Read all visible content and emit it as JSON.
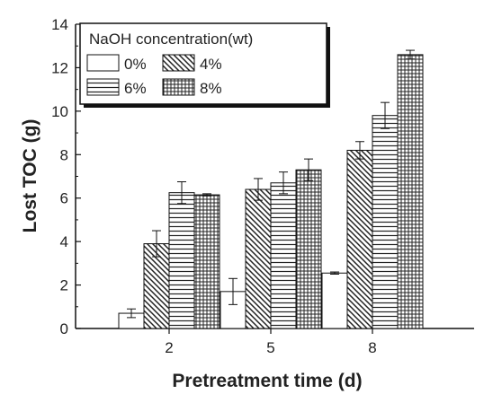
{
  "chart_data": {
    "type": "bar",
    "title": "",
    "xlabel": "Pretreatment time (d)",
    "ylabel": "Lost TOC (g)",
    "categories": [
      "2",
      "5",
      "8"
    ],
    "ylim": [
      0,
      14
    ],
    "yticks": [
      0,
      2,
      4,
      6,
      8,
      10,
      12,
      14
    ],
    "grid": false,
    "legend": {
      "title": "NaOH concentration(wt)",
      "placement": "top-left",
      "columns": 2
    },
    "series": [
      {
        "name": "0%",
        "pattern": "none",
        "values": [
          0.7,
          1.7,
          2.55
        ],
        "errors": [
          0.2,
          0.6,
          0.05
        ]
      },
      {
        "name": "4%",
        "pattern": "diagonal-hatch",
        "values": [
          3.9,
          6.4,
          8.2
        ],
        "errors": [
          0.6,
          0.5,
          0.4
        ]
      },
      {
        "name": "6%",
        "pattern": "horizontal-lines",
        "values": [
          6.25,
          6.7,
          9.8
        ],
        "errors": [
          0.5,
          0.5,
          0.6
        ]
      },
      {
        "name": "8%",
        "pattern": "grid",
        "values": [
          6.15,
          7.3,
          12.6
        ],
        "errors": [
          0.05,
          0.5,
          0.2
        ]
      }
    ]
  }
}
